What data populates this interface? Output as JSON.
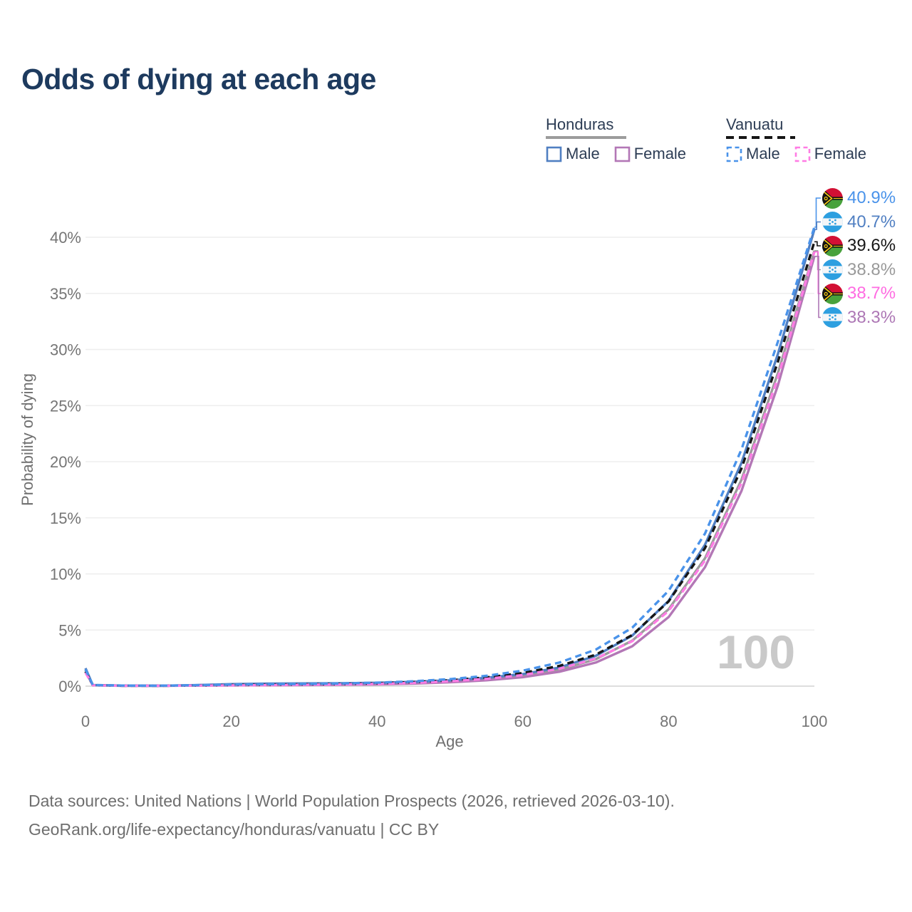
{
  "title": "Odds of dying at each age",
  "watermark": "100",
  "legend": {
    "groups": [
      {
        "label": "Honduras",
        "line_style": "solid",
        "underline_color": "#9c9c9c",
        "items": [
          {
            "label": "Male",
            "color": "#507fc2"
          },
          {
            "label": "Female",
            "color": "#b377b6"
          }
        ]
      },
      {
        "label": "Vanuatu",
        "line_style": "dashed",
        "underline_color": "#161616",
        "items": [
          {
            "label": "Male",
            "color": "#4a93ea"
          },
          {
            "label": "Female",
            "color": "#ff7ce4"
          }
        ]
      }
    ]
  },
  "axes": {
    "x": {
      "label": "Age",
      "ticks": [
        0,
        20,
        40,
        60,
        80,
        100
      ],
      "range": [
        0,
        100
      ]
    },
    "y": {
      "label": "Probability of dying",
      "ticks": [
        0,
        5,
        10,
        15,
        20,
        25,
        30,
        35,
        40
      ],
      "tick_suffix": "%",
      "range": [
        0,
        40
      ]
    }
  },
  "end_labels": [
    {
      "text": "40.9%",
      "value": 40.9,
      "color": "#4a93ea",
      "flag": "vanuatu",
      "series": "Vanuatu Male"
    },
    {
      "text": "40.7%",
      "value": 40.7,
      "color": "#507fc2",
      "flag": "honduras",
      "series": "Honduras Male"
    },
    {
      "text": "39.6%",
      "value": 39.6,
      "color": "#161616",
      "flag": "vanuatu",
      "series": "Vanuatu Both"
    },
    {
      "text": "38.8%",
      "value": 38.8,
      "color": "#999999",
      "flag": "honduras",
      "series": "Honduras Both"
    },
    {
      "text": "38.7%",
      "value": 38.7,
      "color": "#ff6ce2",
      "flag": "vanuatu",
      "series": "Vanuatu Female"
    },
    {
      "text": "38.3%",
      "value": 38.3,
      "color": "#ad77b5",
      "flag": "honduras",
      "series": "Honduras Female"
    }
  ],
  "footer": {
    "line1": "Data sources: United Nations | World Population Prospects (2026, retrieved 2026-03-10).",
    "line2": "GeoRank.org/life-expectancy/honduras/vanuatu | CC BY"
  },
  "chart_data": {
    "type": "line",
    "title": "Odds of dying at each age",
    "xlabel": "Age",
    "ylabel": "Probability of dying",
    "xlim": [
      0,
      100
    ],
    "ylim_percent": [
      0,
      43
    ],
    "grid": "horizontal",
    "legend_position": "top-right",
    "x_ages": [
      0,
      1,
      5,
      10,
      15,
      20,
      25,
      30,
      35,
      40,
      45,
      50,
      55,
      60,
      65,
      70,
      75,
      80,
      85,
      90,
      95,
      100
    ],
    "series": [
      {
        "key": "hn_both",
        "name": "Honduras Both sexes",
        "color": "#9c9c9c",
        "dash": false,
        "values_percent": [
          1.45,
          0.09,
          0.04,
          0.03,
          0.07,
          0.13,
          0.16,
          0.18,
          0.2,
          0.24,
          0.31,
          0.43,
          0.62,
          0.93,
          1.46,
          2.4,
          4.05,
          6.85,
          11.4,
          18.4,
          27.9,
          38.8
        ]
      },
      {
        "key": "hn_female",
        "name": "Honduras Female",
        "color": "#b377b6",
        "dash": false,
        "values_percent": [
          1.3,
          0.08,
          0.03,
          0.03,
          0.05,
          0.07,
          0.08,
          0.1,
          0.12,
          0.16,
          0.23,
          0.34,
          0.52,
          0.8,
          1.28,
          2.1,
          3.55,
          6.15,
          10.6,
          17.4,
          26.8,
          38.3
        ]
      },
      {
        "key": "hn_male",
        "name": "Honduras Male",
        "color": "#507fc2",
        "dash": false,
        "values_percent": [
          1.6,
          0.1,
          0.05,
          0.04,
          0.09,
          0.18,
          0.22,
          0.24,
          0.26,
          0.3,
          0.38,
          0.52,
          0.74,
          1.08,
          1.66,
          2.7,
          4.5,
          7.6,
          12.6,
          19.9,
          29.6,
          40.7
        ]
      },
      {
        "key": "vu_both",
        "name": "Vanuatu Both sexes",
        "color": "#161616",
        "dash": true,
        "values_percent": [
          1.3,
          0.09,
          0.04,
          0.03,
          0.06,
          0.1,
          0.13,
          0.16,
          0.19,
          0.25,
          0.36,
          0.52,
          0.78,
          1.17,
          1.8,
          2.8,
          4.55,
          7.55,
          12.3,
          19.4,
          28.9,
          39.6
        ]
      },
      {
        "key": "vu_female",
        "name": "Vanuatu Female",
        "color": "#ff7ce4",
        "dash": true,
        "values_percent": [
          1.2,
          0.08,
          0.04,
          0.03,
          0.05,
          0.07,
          0.09,
          0.12,
          0.15,
          0.2,
          0.29,
          0.43,
          0.65,
          0.99,
          1.55,
          2.45,
          4.0,
          6.7,
          11.2,
          18.1,
          27.5,
          38.7
        ]
      },
      {
        "key": "vu_male",
        "name": "Vanuatu Male",
        "color": "#4a93ea",
        "dash": true,
        "values_percent": [
          1.5,
          0.1,
          0.05,
          0.04,
          0.08,
          0.14,
          0.17,
          0.2,
          0.24,
          0.31,
          0.43,
          0.62,
          0.92,
          1.38,
          2.1,
          3.25,
          5.2,
          8.5,
          13.6,
          21.1,
          30.7,
          40.9
        ]
      }
    ]
  },
  "colors": {
    "title": "#1d3a5e",
    "axis_text": "#757575",
    "gridline": "#eeeeee",
    "zero_line": "#d4d4d4",
    "watermark": "#c9c9c9",
    "footer_text": "#6e6e6e"
  }
}
